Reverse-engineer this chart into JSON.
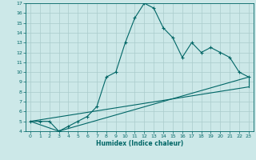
{
  "title": "",
  "xlabel": "Humidex (Indice chaleur)",
  "ylabel": "",
  "bg_color": "#cce8e8",
  "grid_color": "#aacccc",
  "line_color": "#006666",
  "marker": "+",
  "xlim": [
    -0.5,
    23.5
  ],
  "ylim": [
    4,
    17
  ],
  "xticks": [
    0,
    1,
    2,
    3,
    4,
    5,
    6,
    7,
    8,
    9,
    10,
    11,
    12,
    13,
    14,
    15,
    16,
    17,
    18,
    19,
    20,
    21,
    22,
    23
  ],
  "yticks": [
    4,
    5,
    6,
    7,
    8,
    9,
    10,
    11,
    12,
    13,
    14,
    15,
    16,
    17
  ],
  "curve1_x": [
    0,
    1,
    2,
    3,
    4,
    5,
    6,
    7,
    8,
    9,
    10,
    11,
    12,
    13,
    14,
    15,
    16,
    17,
    18,
    19,
    20,
    21,
    22,
    23
  ],
  "curve1_y": [
    5.0,
    5.0,
    5.0,
    4.0,
    4.5,
    5.0,
    5.5,
    6.5,
    9.5,
    10.0,
    13.0,
    15.5,
    17.0,
    16.5,
    14.5,
    13.5,
    11.5,
    13.0,
    12.0,
    12.5,
    12.0,
    11.5,
    10.0,
    9.5
  ],
  "line2_x": [
    0,
    3,
    23
  ],
  "line2_y": [
    5.0,
    4.0,
    9.5
  ],
  "line3_x": [
    0,
    23
  ],
  "line3_y": [
    5.0,
    8.5
  ],
  "tick_fontsize": 4.5,
  "xlabel_fontsize": 5.5
}
